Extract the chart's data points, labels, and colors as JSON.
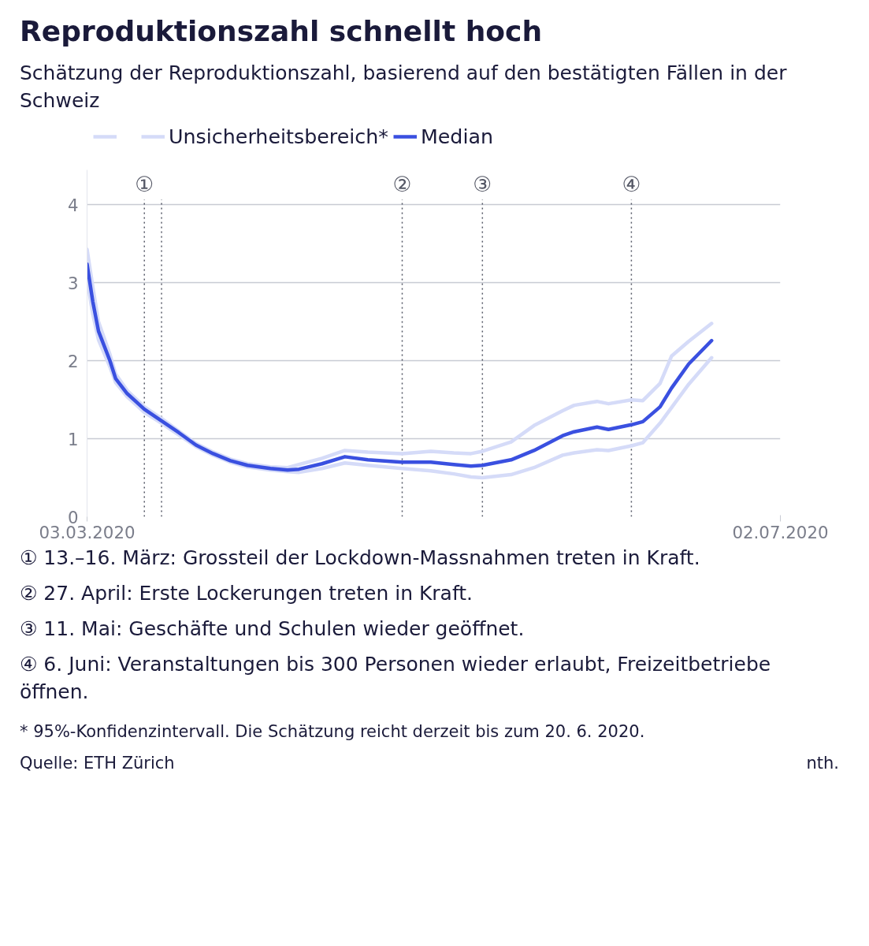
{
  "chart_data": {
    "type": "line",
    "title": "Reproduktionszahl schnellt hoch",
    "subtitle": "Schätzung der Reproduktionszahl, basierend auf den bestätigten Fällen in der Schweiz",
    "x": [
      "2020-03-03",
      "2020-03-04",
      "2020-03-05",
      "2020-03-07",
      "2020-03-08",
      "2020-03-10",
      "2020-03-13",
      "2020-03-16",
      "2020-03-19",
      "2020-03-22",
      "2020-03-25",
      "2020-03-28",
      "2020-03-31",
      "2020-04-04",
      "2020-04-07",
      "2020-04-09",
      "2020-04-13",
      "2020-04-17",
      "2020-04-21",
      "2020-04-27",
      "2020-05-02",
      "2020-05-06",
      "2020-05-09",
      "2020-05-11",
      "2020-05-16",
      "2020-05-20",
      "2020-05-25",
      "2020-05-27",
      "2020-05-31",
      "2020-06-02",
      "2020-06-06",
      "2020-06-08",
      "2020-06-11",
      "2020-06-13",
      "2020-06-16",
      "2020-06-20"
    ],
    "series": [
      {
        "name": "Unsicherheitsbereich*",
        "color": "#d5dbf8",
        "values": [
          3.43,
          2.95,
          2.5,
          2.08,
          1.83,
          1.62,
          1.41,
          1.26,
          1.1,
          0.94,
          0.83,
          0.74,
          0.68,
          0.64,
          0.63,
          0.67,
          0.75,
          0.85,
          0.83,
          0.81,
          0.84,
          0.82,
          0.81,
          0.84,
          0.96,
          1.17,
          1.36,
          1.43,
          1.48,
          1.45,
          1.5,
          1.49,
          1.71,
          2.06,
          2.25,
          2.48
        ]
      },
      {
        "color": "#d5dbf8",
        "values": [
          3.04,
          2.6,
          2.27,
          1.92,
          1.72,
          1.54,
          1.34,
          1.2,
          1.05,
          0.9,
          0.79,
          0.7,
          0.64,
          0.6,
          0.58,
          0.57,
          0.62,
          0.69,
          0.66,
          0.62,
          0.59,
          0.55,
          0.51,
          0.5,
          0.54,
          0.63,
          0.79,
          0.82,
          0.86,
          0.85,
          0.91,
          0.95,
          1.2,
          1.4,
          1.7,
          2.04
        ]
      },
      {
        "name": "Median",
        "color": "#3a50e0",
        "values": [
          3.24,
          2.76,
          2.38,
          2.0,
          1.77,
          1.58,
          1.38,
          1.23,
          1.08,
          0.92,
          0.81,
          0.72,
          0.66,
          0.62,
          0.6,
          0.61,
          0.68,
          0.77,
          0.73,
          0.7,
          0.7,
          0.67,
          0.65,
          0.66,
          0.73,
          0.85,
          1.04,
          1.09,
          1.15,
          1.12,
          1.18,
          1.22,
          1.41,
          1.65,
          1.96,
          2.26
        ]
      }
    ],
    "xlim": [
      "2020-03-03",
      "2020-07-02"
    ],
    "xticks": [
      {
        "value": "2020-03-03",
        "label": "03.03.2020"
      },
      {
        "value": "2020-07-02",
        "label": "02.07.2020"
      }
    ],
    "ylim": [
      0,
      4.45
    ],
    "yticks": [
      0,
      1,
      2,
      3,
      4
    ],
    "grid": "y",
    "legend": "top left",
    "line_style": "solid",
    "ref_lines": [
      {
        "axis": "x",
        "value": "2020-03-13",
        "label": "①",
        "line_style": "dotted"
      },
      {
        "axis": "x",
        "value": "2020-03-16",
        "line_style": "dotted"
      },
      {
        "axis": "x",
        "value": "2020-04-27",
        "label": "②",
        "line_style": "dotted"
      },
      {
        "axis": "x",
        "value": "2020-05-11",
        "label": "③",
        "line_style": "dotted"
      },
      {
        "axis": "x",
        "value": "2020-06-06",
        "label": "④",
        "line_style": "dotted"
      }
    ],
    "annotations": [
      "① 13.–16. März: Grossteil der Lockdown-Massnahmen treten in Kraft.",
      "② 27. April: Erste Lockerungen treten in Kraft.",
      "③ 11. Mai: Geschäfte und Schulen wieder geöffnet.",
      "④ 6. Juni: Veranstaltungen bis 300 Personen wieder erlaubt, Freizeitbetriebe öffnen.",
      "* 95%-Konfidenzintervall. Die Schätzung reicht derzeit bis zum 20. 6. 2020.",
      "Quelle: ETH Zürich",
      "nth."
    ]
  }
}
